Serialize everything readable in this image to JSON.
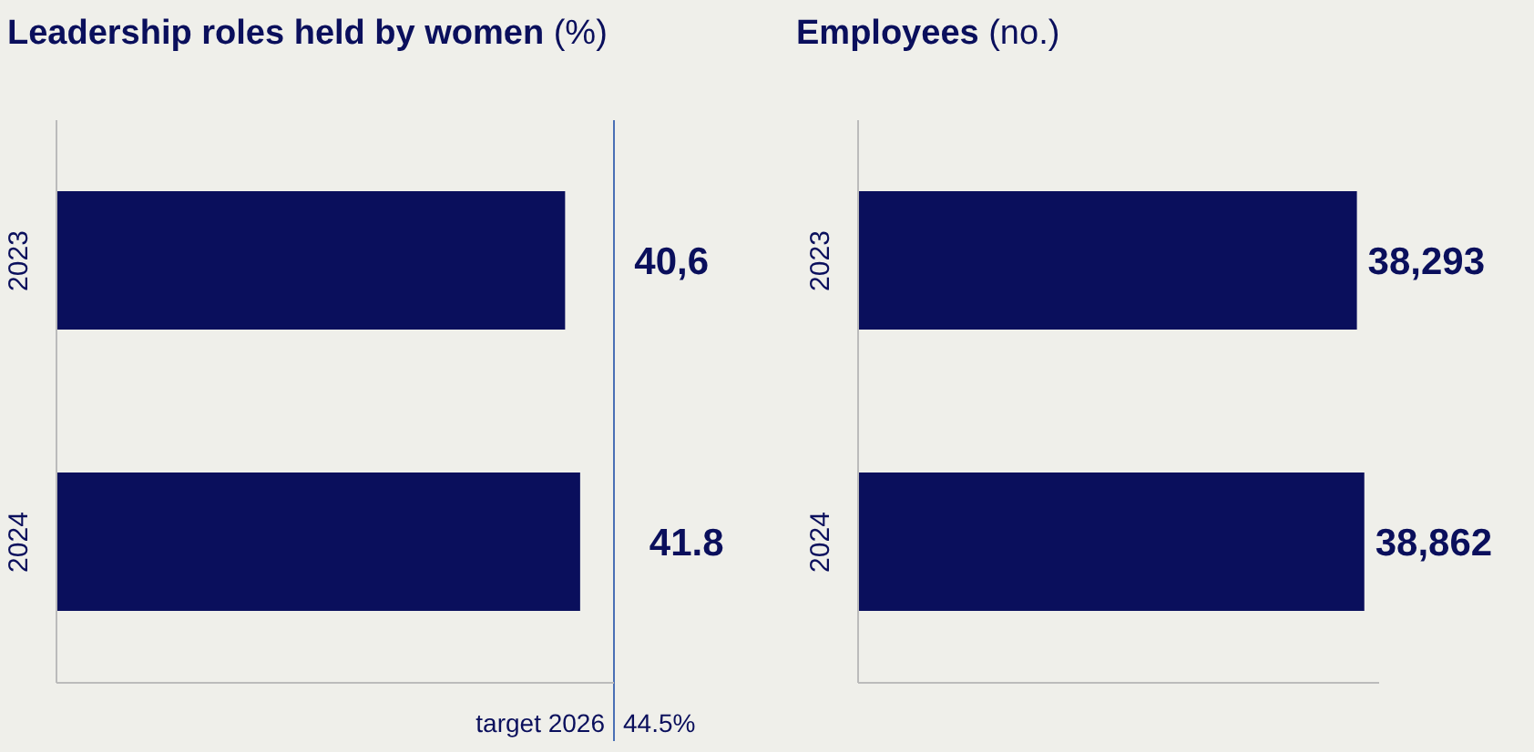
{
  "chart_data": [
    {
      "type": "bar",
      "orientation": "horizontal",
      "title": "Leadership roles held by women (%)",
      "categories": [
        "2023",
        "2024"
      ],
      "values": [
        40.6,
        41.8
      ],
      "value_labels": [
        "40,6",
        "41.8"
      ],
      "color": "#0a0f5c",
      "xlim": [
        0,
        44.5
      ],
      "tick_labels": "y",
      "grid": false,
      "ref_lines": [
        {
          "axis": "x",
          "value": 44.5,
          "label": "target 2026",
          "color": "#4a6fb5"
        }
      ],
      "annotations": [
        "44.5%"
      ]
    },
    {
      "type": "bar",
      "orientation": "horizontal",
      "title": "Employees (no.)",
      "categories": [
        "2023",
        "2024"
      ],
      "values": [
        38293,
        38862
      ],
      "value_labels": [
        "38,293",
        "38,862"
      ],
      "color": "#0a0f5c",
      "tick_labels": "y",
      "grid": false
    }
  ]
}
